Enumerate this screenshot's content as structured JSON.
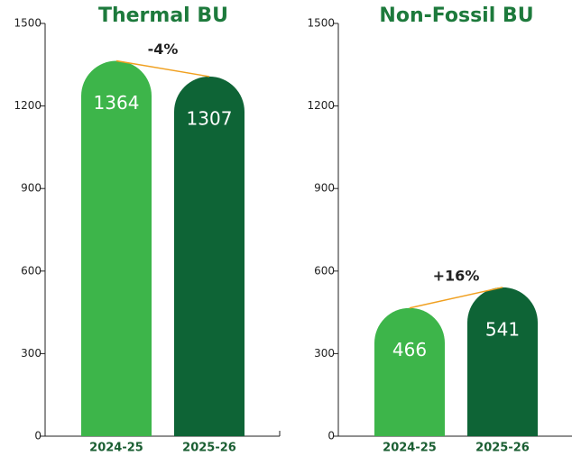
{
  "chart_data": [
    {
      "type": "bar",
      "title": "Thermal BU",
      "categories": [
        "2024-25",
        "2025-26"
      ],
      "values": [
        1364,
        1307
      ],
      "colors": [
        "#3db54a",
        "#0e6436"
      ],
      "annotation": "-4%",
      "ylim": [
        0,
        1500
      ],
      "yticks": [
        0,
        300,
        600,
        900,
        1200,
        1500
      ]
    },
    {
      "type": "bar",
      "title": "Non-Fossil BU",
      "categories": [
        "2024-25",
        "2025-26"
      ],
      "values": [
        466,
        541
      ],
      "colors": [
        "#3db54a",
        "#0e6436"
      ],
      "annotation": "+16%",
      "ylim": [
        0,
        1500
      ],
      "yticks": [
        0,
        300,
        600,
        900,
        1200,
        1500
      ]
    }
  ]
}
